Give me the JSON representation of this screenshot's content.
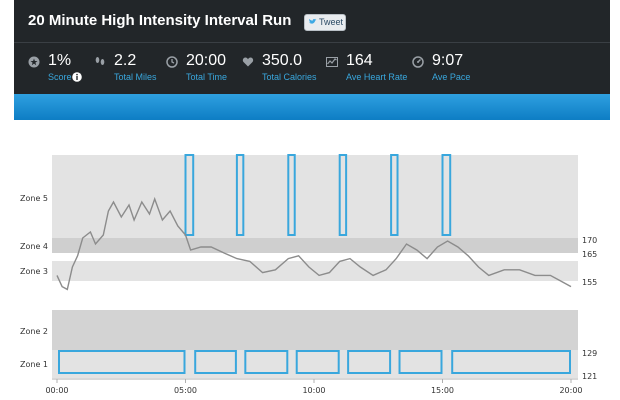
{
  "header": {
    "title": "20 Minute High Intensity Interval Run",
    "tweet_label": "Tweet"
  },
  "stats": [
    {
      "icon": "star-icon",
      "value": "1%",
      "label": "Score",
      "info_icon": true
    },
    {
      "icon": "footprints-icon",
      "value": "2.2",
      "label": "Total Miles"
    },
    {
      "icon": "clock-icon",
      "value": "20:00",
      "label": "Total Time"
    },
    {
      "icon": "heart-icon",
      "value": "350.0",
      "label": "Total Calories"
    },
    {
      "icon": "heart-rate-chart-icon",
      "value": "164",
      "label": "Ave Heart Rate"
    },
    {
      "icon": "gauge-icon",
      "value": "9:07",
      "label": "Ave Pace"
    }
  ],
  "colors": {
    "header_bg": "#222629",
    "accent_blue": "#39a7dd",
    "band_blue": "#1a8fd5",
    "zone_fill": "#e3e3e3",
    "zone_dark": "#cfcfcf",
    "hr_line": "#8c8c8c"
  },
  "chart_data": {
    "type": "line",
    "x_unit": "minutes",
    "xlim": [
      0,
      20
    ],
    "x_ticks": [
      "00:00",
      "05:00",
      "10:00",
      "15:00",
      "20:00"
    ],
    "zones": [
      "Zone 5",
      "Zone 4",
      "Zone 3",
      "Zone 2",
      "Zone 1"
    ],
    "right_ticks": [
      "170",
      "165",
      "155",
      "129",
      "121"
    ],
    "heart_rate": [
      {
        "x": 0.0,
        "y": 157
      },
      {
        "x": 0.2,
        "y": 153
      },
      {
        "x": 0.4,
        "y": 152
      },
      {
        "x": 0.6,
        "y": 160
      },
      {
        "x": 0.8,
        "y": 164
      },
      {
        "x": 1.0,
        "y": 170
      },
      {
        "x": 1.3,
        "y": 172
      },
      {
        "x": 1.5,
        "y": 168
      },
      {
        "x": 1.8,
        "y": 171
      },
      {
        "x": 2.0,
        "y": 179
      },
      {
        "x": 2.2,
        "y": 182
      },
      {
        "x": 2.5,
        "y": 177
      },
      {
        "x": 2.8,
        "y": 181
      },
      {
        "x": 3.0,
        "y": 176
      },
      {
        "x": 3.3,
        "y": 182
      },
      {
        "x": 3.6,
        "y": 178
      },
      {
        "x": 3.8,
        "y": 183
      },
      {
        "x": 4.1,
        "y": 176
      },
      {
        "x": 4.4,
        "y": 179
      },
      {
        "x": 4.7,
        "y": 174
      },
      {
        "x": 5.0,
        "y": 171
      },
      {
        "x": 5.2,
        "y": 166
      },
      {
        "x": 5.6,
        "y": 167
      },
      {
        "x": 6.0,
        "y": 167
      },
      {
        "x": 6.5,
        "y": 165
      },
      {
        "x": 7.0,
        "y": 163
      },
      {
        "x": 7.5,
        "y": 162
      },
      {
        "x": 8.0,
        "y": 158
      },
      {
        "x": 8.5,
        "y": 159
      },
      {
        "x": 9.0,
        "y": 163
      },
      {
        "x": 9.4,
        "y": 164
      },
      {
        "x": 9.8,
        "y": 160
      },
      {
        "x": 10.2,
        "y": 157
      },
      {
        "x": 10.6,
        "y": 158
      },
      {
        "x": 11.0,
        "y": 162
      },
      {
        "x": 11.4,
        "y": 163
      },
      {
        "x": 11.8,
        "y": 160
      },
      {
        "x": 12.3,
        "y": 157
      },
      {
        "x": 12.8,
        "y": 159
      },
      {
        "x": 13.2,
        "y": 163
      },
      {
        "x": 13.6,
        "y": 168
      },
      {
        "x": 14.0,
        "y": 166
      },
      {
        "x": 14.4,
        "y": 163
      },
      {
        "x": 14.8,
        "y": 167
      },
      {
        "x": 15.2,
        "y": 169
      },
      {
        "x": 15.6,
        "y": 167
      },
      {
        "x": 16.0,
        "y": 164
      },
      {
        "x": 16.4,
        "y": 160
      },
      {
        "x": 16.8,
        "y": 157
      },
      {
        "x": 17.4,
        "y": 159
      },
      {
        "x": 18.0,
        "y": 159
      },
      {
        "x": 18.6,
        "y": 157
      },
      {
        "x": 19.2,
        "y": 157
      },
      {
        "x": 19.6,
        "y": 155
      },
      {
        "x": 20.0,
        "y": 153
      }
    ],
    "intervals": {
      "high": [
        [
          5.0,
          5.3
        ],
        [
          7.0,
          7.25
        ],
        [
          9.0,
          9.25
        ],
        [
          11.0,
          11.25
        ],
        [
          13.0,
          13.25
        ],
        [
          15.0,
          15.3
        ]
      ],
      "low": [
        [
          0.0,
          5.0
        ],
        [
          5.3,
          7.0
        ],
        [
          7.25,
          9.0
        ],
        [
          9.25,
          11.0
        ],
        [
          11.25,
          13.0
        ],
        [
          13.25,
          15.0
        ],
        [
          15.3,
          20.0
        ]
      ]
    }
  }
}
